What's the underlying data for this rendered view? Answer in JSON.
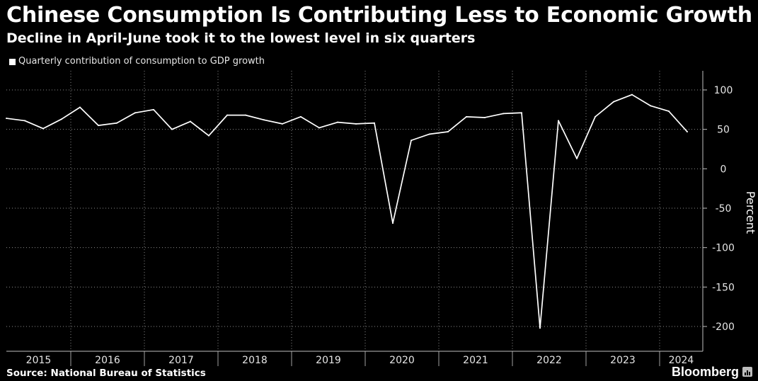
{
  "header": {
    "title": "Chinese Consumption Is Contributing Less to Economic Growth",
    "subtitle": "Decline in April-June took it to the lowest level in six quarters"
  },
  "legend": {
    "label": "Quarterly contribution of consumption to GDP growth"
  },
  "footer": {
    "source": "Source: National Bureau of Statistics",
    "brand": "Bloomberg"
  },
  "colors": {
    "background": "#000000",
    "line": "#ffffff",
    "grid": "#8a8a8a",
    "text": "#ffffff"
  },
  "chart_data": {
    "type": "line",
    "title": "Chinese Consumption Is Contributing Less to Economic Growth",
    "subtitle": "Decline in April-June took it to the lowest level in six quarters",
    "xlabel": "",
    "ylabel": "Percent",
    "ylim": [
      -200,
      100
    ],
    "yticks": [
      100,
      50,
      0,
      -50,
      -100,
      -150,
      -200
    ],
    "ytick_labels": [
      "100",
      "50",
      "0",
      "-50",
      "-100",
      "-150",
      "-200"
    ],
    "grid": "dotted",
    "legend_placement": "top-left",
    "year_labels": [
      "2015",
      "2016",
      "2017",
      "2018",
      "2019",
      "2020",
      "2021",
      "2022",
      "2023",
      "2024"
    ],
    "series": [
      {
        "name": "Quarterly contribution of consumption to GDP growth",
        "x": [
          "2015 Q1",
          "2015 Q2",
          "2015 Q3",
          "2015 Q4",
          "2016 Q1",
          "2016 Q2",
          "2016 Q3",
          "2016 Q4",
          "2017 Q1",
          "2017 Q2",
          "2017 Q3",
          "2017 Q4",
          "2018 Q1",
          "2018 Q2",
          "2018 Q3",
          "2018 Q4",
          "2019 Q1",
          "2019 Q2",
          "2019 Q3",
          "2019 Q4",
          "2020 Q1",
          "2020 Q2",
          "2020 Q3",
          "2020 Q4",
          "2021 Q1",
          "2021 Q2",
          "2021 Q3",
          "2021 Q4",
          "2022 Q1",
          "2022 Q2",
          "2022 Q3",
          "2022 Q4",
          "2023 Q1",
          "2023 Q2",
          "2023 Q3",
          "2023 Q4",
          "2024 Q1",
          "2024 Q2"
        ],
        "values": [
          64,
          61,
          51,
          63,
          78,
          55,
          58,
          71,
          75,
          50,
          60,
          42,
          68,
          68,
          62,
          57,
          66,
          52,
          59,
          57,
          58,
          -69,
          36,
          44,
          47,
          66,
          65,
          70,
          71,
          -202,
          61,
          13,
          66,
          85,
          94,
          80,
          73,
          47
        ]
      }
    ]
  }
}
